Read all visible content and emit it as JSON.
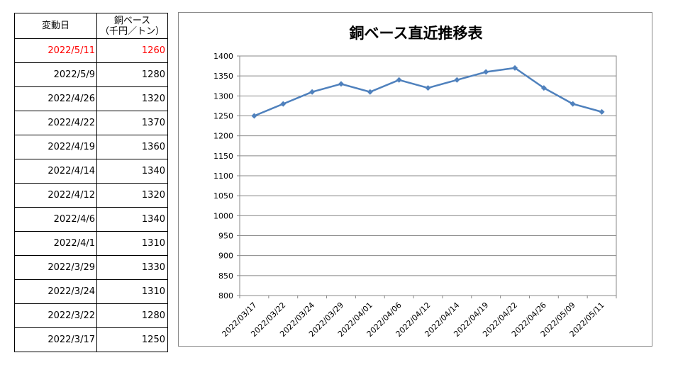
{
  "table": {
    "header": {
      "date": "変動日",
      "price_line1": "銅ベース",
      "price_line2": "（千円／トン）"
    },
    "rows": [
      {
        "date": "2022/5/11",
        "price": "1260",
        "highlight": true
      },
      {
        "date": "2022/5/9",
        "price": "1280",
        "highlight": false
      },
      {
        "date": "2022/4/26",
        "price": "1320",
        "highlight": false
      },
      {
        "date": "2022/4/22",
        "price": "1370",
        "highlight": false
      },
      {
        "date": "2022/4/19",
        "price": "1360",
        "highlight": false
      },
      {
        "date": "2022/4/14",
        "price": "1340",
        "highlight": false
      },
      {
        "date": "2022/4/12",
        "price": "1320",
        "highlight": false
      },
      {
        "date": "2022/4/6",
        "price": "1340",
        "highlight": false
      },
      {
        "date": "2022/4/1",
        "price": "1310",
        "highlight": false
      },
      {
        "date": "2022/3/29",
        "price": "1330",
        "highlight": false
      },
      {
        "date": "2022/3/24",
        "price": "1310",
        "highlight": false
      },
      {
        "date": "2022/3/22",
        "price": "1280",
        "highlight": false
      },
      {
        "date": "2022/3/17",
        "price": "1250",
        "highlight": false
      }
    ],
    "highlight_color": "#ff0000"
  },
  "chart_data": {
    "type": "line",
    "title": "銅ベース直近推移表",
    "xlabel": "",
    "ylabel": "",
    "categories": [
      "2022/03/17",
      "2022/03/22",
      "2022/03/24",
      "2022/03/29",
      "2022/04/01",
      "2022/04/06",
      "2022/04/12",
      "2022/04/14",
      "2022/04/19",
      "2022/04/22",
      "2022/04/26",
      "2022/05/09",
      "2022/05/11"
    ],
    "series": [
      {
        "values": [
          1250,
          1280,
          1310,
          1330,
          1310,
          1340,
          1320,
          1340,
          1360,
          1370,
          1320,
          1280,
          1260
        ],
        "color": "#4f81bd",
        "marker": "diamond"
      }
    ],
    "ylim": [
      800,
      1400
    ],
    "ytick_step": 50,
    "grid": true,
    "legend": "none"
  }
}
